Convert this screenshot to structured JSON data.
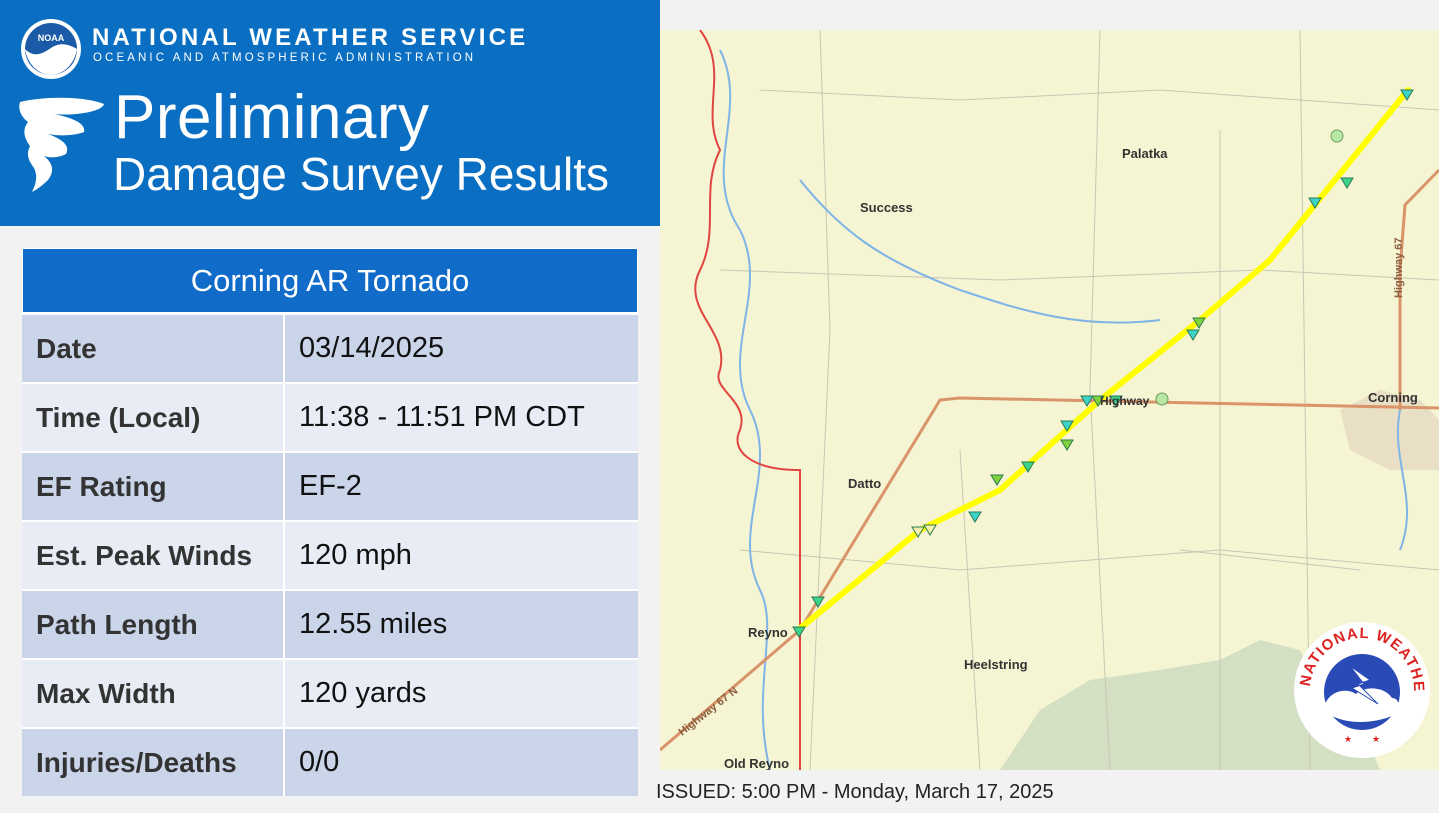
{
  "header": {
    "agency_name": "NATIONAL WEATHER SERVICE",
    "agency_sub": "OCEANIC AND ATMOSPHERIC ADMINISTRATION",
    "title_line1": "Preliminary",
    "title_line2": "Damage Survey Results",
    "logo_text": "NOAA"
  },
  "table": {
    "title": "Corning AR Tornado",
    "rows": [
      {
        "label": "Date",
        "value": "03/14/2025"
      },
      {
        "label": "Time (Local)",
        "value": "11:38 - 11:51 PM CDT"
      },
      {
        "label": "EF Rating",
        "value": "EF-2"
      },
      {
        "label": "Est. Peak Winds",
        "value": "120 mph"
      },
      {
        "label": "Path Length",
        "value": "12.55 miles"
      },
      {
        "label": "Max Width",
        "value": "120 yards"
      },
      {
        "label": "Injuries/Deaths",
        "value": "0/0"
      }
    ]
  },
  "map": {
    "places": {
      "palatka": "Palatka",
      "success": "Success",
      "corning": "Corning",
      "datto": "Datto",
      "reyno": "Reyno",
      "heelstring": "Heelstring",
      "old_reyno": "Old Reyno",
      "highway": "Highway",
      "highway_67": "Highway 67",
      "highway_67n": "Highway 67 N"
    },
    "colors": {
      "track": "#ffff00",
      "state_line": "#e0453f",
      "highway": "#d9946a",
      "water": "#7fb4e6",
      "land": "#f5f4d3",
      "forest": "#d4e0c3"
    }
  },
  "nws_logo_text": "NATIONAL WEATHER SERVICE",
  "issued": "ISSUED: 5:00 PM - Monday, March 17, 2025"
}
